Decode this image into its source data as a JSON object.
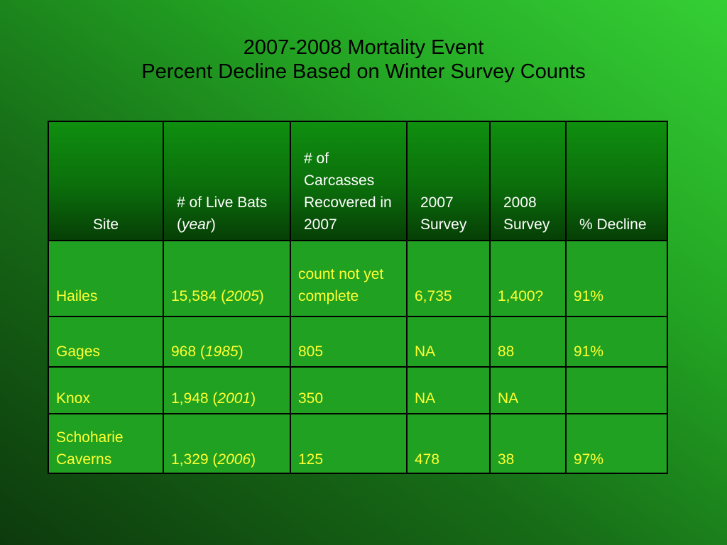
{
  "title": {
    "line1": "2007-2008 Mortality Event",
    "line2": "Percent Decline Based on Winter Survey Counts"
  },
  "table": {
    "headers": {
      "site": "Site",
      "live_bats_prefix": "# of  Live Bats (",
      "live_bats_italic": "year",
      "live_bats_suffix": ")",
      "carcasses": "# of Carcasses Recovered in 2007",
      "survey2007": "2007 Survey",
      "survey2008": "2008 Survey",
      "decline": "% Decline"
    },
    "rows": [
      {
        "site": "Hailes",
        "live_count": "15,584 (",
        "live_year": "2005",
        "live_close": ")",
        "carcasses": "count not yet complete",
        "survey2007": "6,735",
        "survey2008": "1,400?",
        "decline": "91%"
      },
      {
        "site": "Gages",
        "live_count": "968  (",
        "live_year": "1985",
        "live_close": ")",
        "carcasses": "805",
        "survey2007": "NA",
        "survey2008": "88",
        "decline": "91%"
      },
      {
        "site": "Knox",
        "live_count": "1,948 (",
        "live_year": "2001",
        "live_close": ")",
        "carcasses": "350",
        "survey2007": "NA",
        "survey2008": "NA",
        "decline": ""
      },
      {
        "site": "Schoharie Caverns",
        "live_count": "1,329 (",
        "live_year": "2006",
        "live_close": ")",
        "carcasses": "125",
        "survey2007": "478",
        "survey2008": "38",
        "decline": "97%"
      }
    ]
  },
  "colors": {
    "header_text": "#ffffff",
    "cell_text": "#ffff33",
    "title_text": "#000000",
    "cell_background": "#21a121",
    "border": "#000000"
  }
}
